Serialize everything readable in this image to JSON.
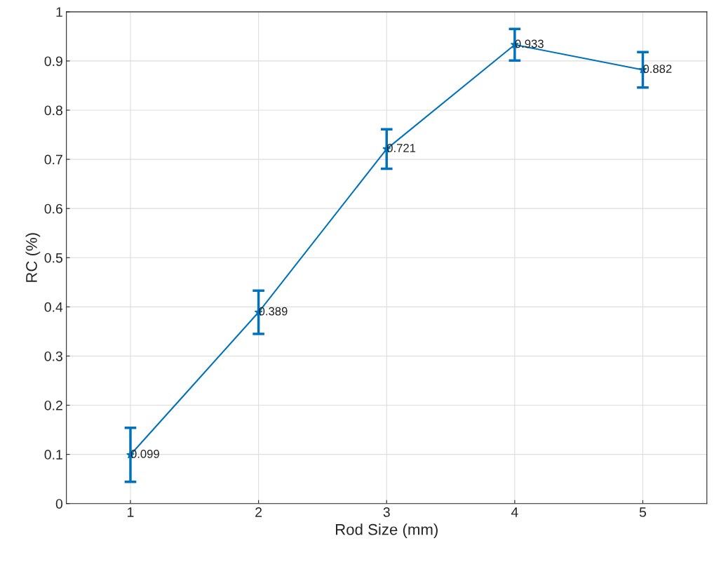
{
  "chart_data": {
    "type": "line",
    "xlabel": "Rod Size (mm)",
    "ylabel": "RC (%)",
    "x": [
      1,
      2,
      3,
      4,
      5
    ],
    "series": [
      {
        "color": "#0072bd",
        "values": [
          0.099,
          0.389,
          0.721,
          0.933,
          0.882
        ],
        "errors": [
          0.055,
          0.044,
          0.04,
          0.032,
          0.036
        ]
      }
    ],
    "data_labels": true,
    "marker": "star",
    "line_style": "solid",
    "grid": true,
    "xlim": [
      0.5,
      5.5
    ],
    "xticks": [
      1,
      2,
      3,
      4,
      5
    ],
    "ylim": [
      0,
      1
    ],
    "yticks": [
      0,
      0.1,
      0.2,
      0.3,
      0.4,
      0.5,
      0.6,
      0.7,
      0.8,
      0.9,
      1
    ]
  }
}
